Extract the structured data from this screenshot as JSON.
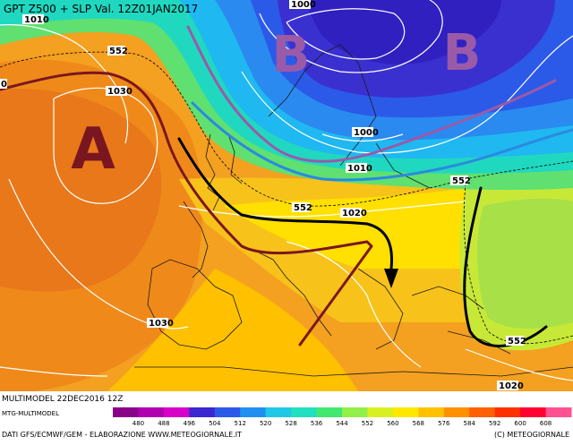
{
  "header": {
    "title": "GPT Z500 + SLP Val. 12Z01JAN2017"
  },
  "pressure_centers": [
    {
      "letter": "A",
      "color": "#7a1620"
    },
    {
      "letter": "B",
      "color": "#9a5aa8"
    },
    {
      "letter": "B",
      "color": "#9a5aa8"
    }
  ],
  "isobar_labels": [
    "1010",
    "1000",
    "552",
    "1030",
    "1000",
    "1010",
    "552",
    "552",
    "1020",
    "1030",
    "552",
    "1020",
    "0"
  ],
  "footer": {
    "line1": "MULTIMODEL 22DEC2016 12Z",
    "line2": "MTG-MULTIMODEL",
    "line3": "DATI GFS/ECMWF/GEM - ELABORAZIONE WWW.METEOGIORNALE.IT",
    "copyright": "(C) METEOGIORNALE"
  },
  "colorbar": {
    "values": [
      "480",
      "488",
      "496",
      "504",
      "512",
      "520",
      "528",
      "536",
      "544",
      "552",
      "560",
      "568",
      "576",
      "584",
      "592",
      "600",
      "608"
    ],
    "colors": [
      "#8a0088",
      "#b000b0",
      "#d800c8",
      "#3c28d0",
      "#2c5ae8",
      "#2090f0",
      "#20c8e8",
      "#20e0c0",
      "#40e870",
      "#90f048",
      "#d8f020",
      "#ffe800",
      "#ffc000",
      "#ff9000",
      "#ff6000",
      "#ff3000",
      "#ff0030",
      "#ff5090"
    ]
  }
}
